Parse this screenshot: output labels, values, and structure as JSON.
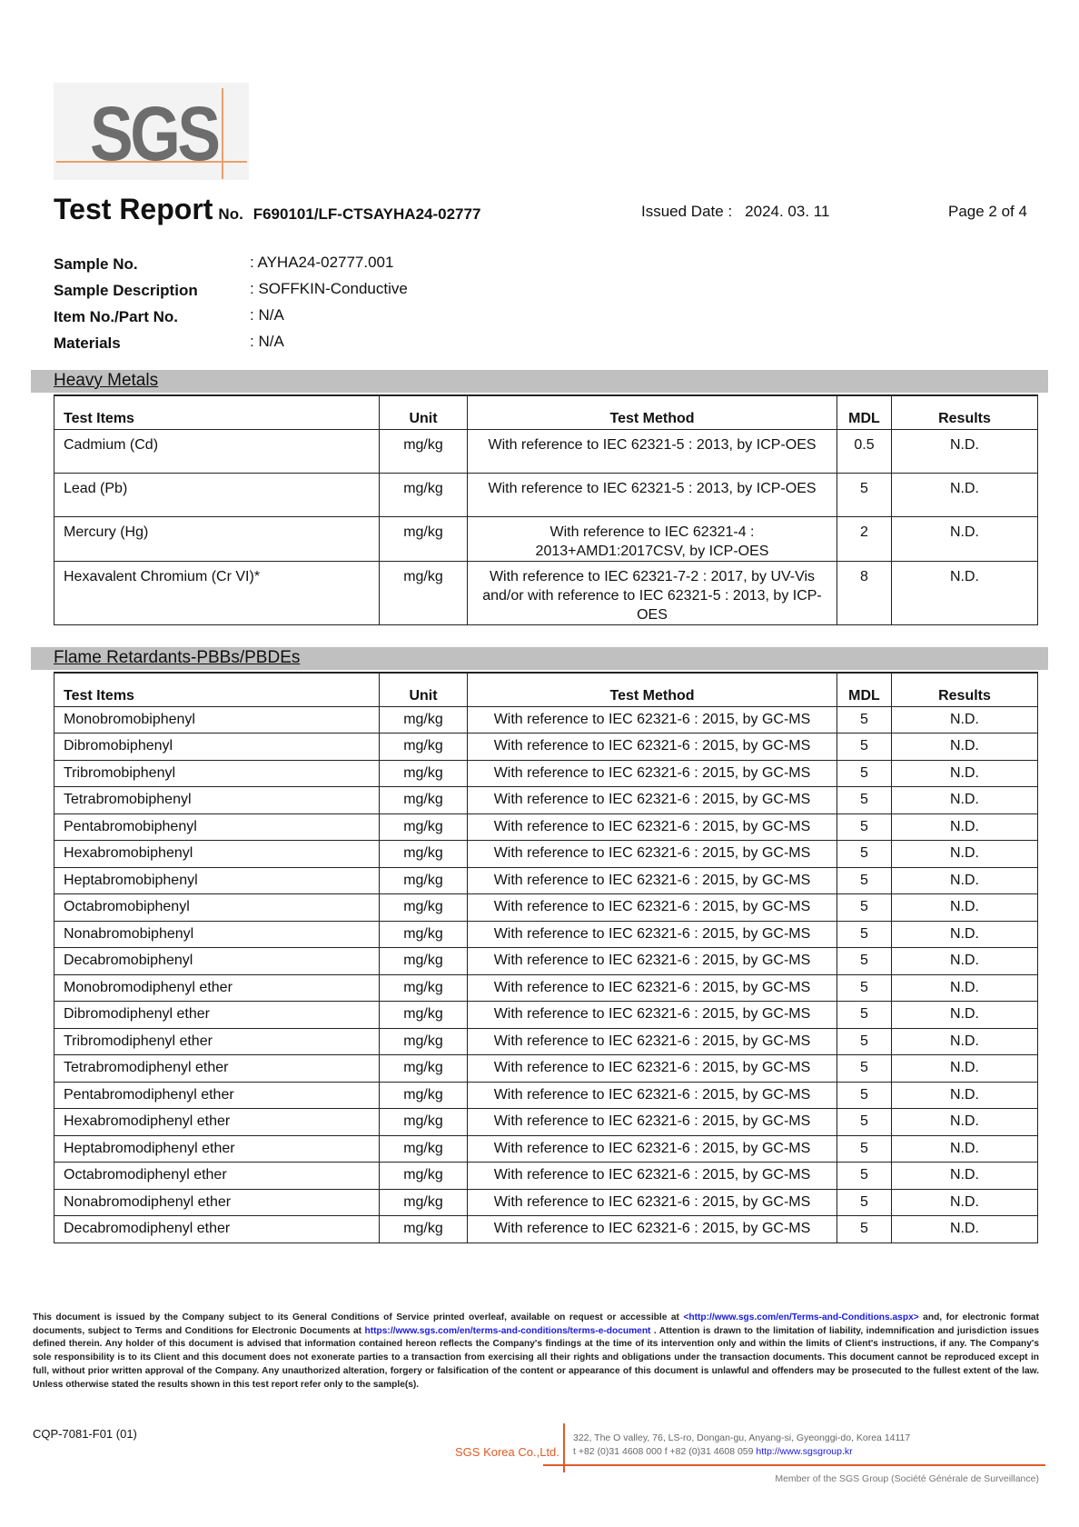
{
  "logo": "SGS",
  "header": {
    "title": "Test Report",
    "no_label": "No.",
    "report_no": "F690101/LF-CTSAYHA24-02777",
    "issued_label": "Issued Date :",
    "issued_date": "2024. 03. 11",
    "page": "Page 2 of 4"
  },
  "info": [
    {
      "label": "Sample No.",
      "value": ": AYHA24-02777.001"
    },
    {
      "label": "Sample Description",
      "value": ": SOFFKIN-Conductive"
    },
    {
      "label": "Item No./Part No.",
      "value": ": N/A"
    },
    {
      "label": "Materials",
      "value": ": N/A"
    }
  ],
  "columns": [
    "Test Items",
    "Unit",
    "Test Method",
    "MDL",
    "Results"
  ],
  "heavy_metals": {
    "title": "Heavy Metals",
    "rows": [
      {
        "item": "Cadmium (Cd)",
        "unit": "mg/kg",
        "method": "With reference to IEC 62321-5 : 2013, by ICP-OES",
        "mdl": "0.5",
        "result": "N.D."
      },
      {
        "item": "Lead (Pb)",
        "unit": "mg/kg",
        "method": "With reference to IEC 62321-5 : 2013, by ICP-OES",
        "mdl": "5",
        "result": "N.D."
      },
      {
        "item": "Mercury (Hg)",
        "unit": "mg/kg",
        "method": "With reference to IEC 62321-4 : 2013+AMD1:2017CSV, by ICP-OES",
        "mdl": "2",
        "result": "N.D."
      },
      {
        "item": "Hexavalent Chromium (Cr VI)*",
        "unit": "mg/kg",
        "method": "With reference to IEC 62321-7-2 : 2017,  by UV-Vis and/or with reference to IEC 62321-5 : 2013, by ICP-OES",
        "mdl": "8",
        "result": "N.D."
      }
    ]
  },
  "flame": {
    "title": "Flame Retardants-PBBs/PBDEs",
    "method": "With reference to IEC 62321-6 : 2015, by GC-MS",
    "unit": "mg/kg",
    "mdl": "5",
    "result": "N.D.",
    "items": [
      "Monobromobiphenyl",
      "Dibromobiphenyl",
      "Tribromobiphenyl",
      "Tetrabromobiphenyl",
      "Pentabromobiphenyl",
      "Hexabromobiphenyl",
      "Heptabromobiphenyl",
      "Octabromobiphenyl",
      "Nonabromobiphenyl",
      "Decabromobiphenyl",
      "Monobromodiphenyl ether",
      "Dibromodiphenyl ether",
      "Tribromodiphenyl ether",
      "Tetrabromodiphenyl ether",
      "Pentabromodiphenyl ether",
      "Hexabromodiphenyl ether",
      "Heptabromodiphenyl ether",
      "Octabromodiphenyl ether",
      "Nonabromodiphenyl ether",
      "Decabromodiphenyl ether"
    ]
  },
  "footer": {
    "disclaimer_1": "This document is issued by the Company subject to its General Conditions of Service printed overleaf, available on request or accessible at ",
    "link_1": "<http://www.sgs.com/en/Terms-and-Conditions.aspx>",
    "disclaimer_2": " and, for electronic format documents, subject to Terms and Conditions for Electronic Documents at ",
    "link_2": "https://www.sgs.com/en/terms-and-conditions/terms-e-document",
    "disclaimer_3": " . Attention is drawn to the limitation of liability, indemnification and jurisdiction issues defined therein. Any holder of this document is advised that information contained hereon reflects the Company's findings at the time of its intervention only and within the limits of Client's instructions, if any. The Company's sole responsibility is to its Client and this document does not exonerate parties to a transaction from exercising all their rights and obligations under the transaction documents. This document cannot be reproduced except in full, without prior written approval of the Company. Any unauthorized alteration, forgery or falsification of the content or appearance of this document is unlawful and offenders may be prosecuted to the fullest extent of the law.  Unless otherwise stated the results shown in this test report refer only to the sample(s).",
    "form_code": "CQP-7081-F01 (01)",
    "company": "SGS Korea Co.,Ltd.",
    "address": "322, The O valley, 76, LS-ro, Dongan-gu, Anyang-si, Gyeonggi-do, Korea 14117",
    "phone": "t +82 (0)31 4608 000  f +82 (0)31 4608 059",
    "website": "http://www.sgsgroup.kr",
    "member": "Member of the SGS Group (Société Générale de Surveillance)"
  },
  "colors": {
    "accent": "#e05a25",
    "band": "#c0c0c0",
    "link": "#1a1ae0"
  }
}
